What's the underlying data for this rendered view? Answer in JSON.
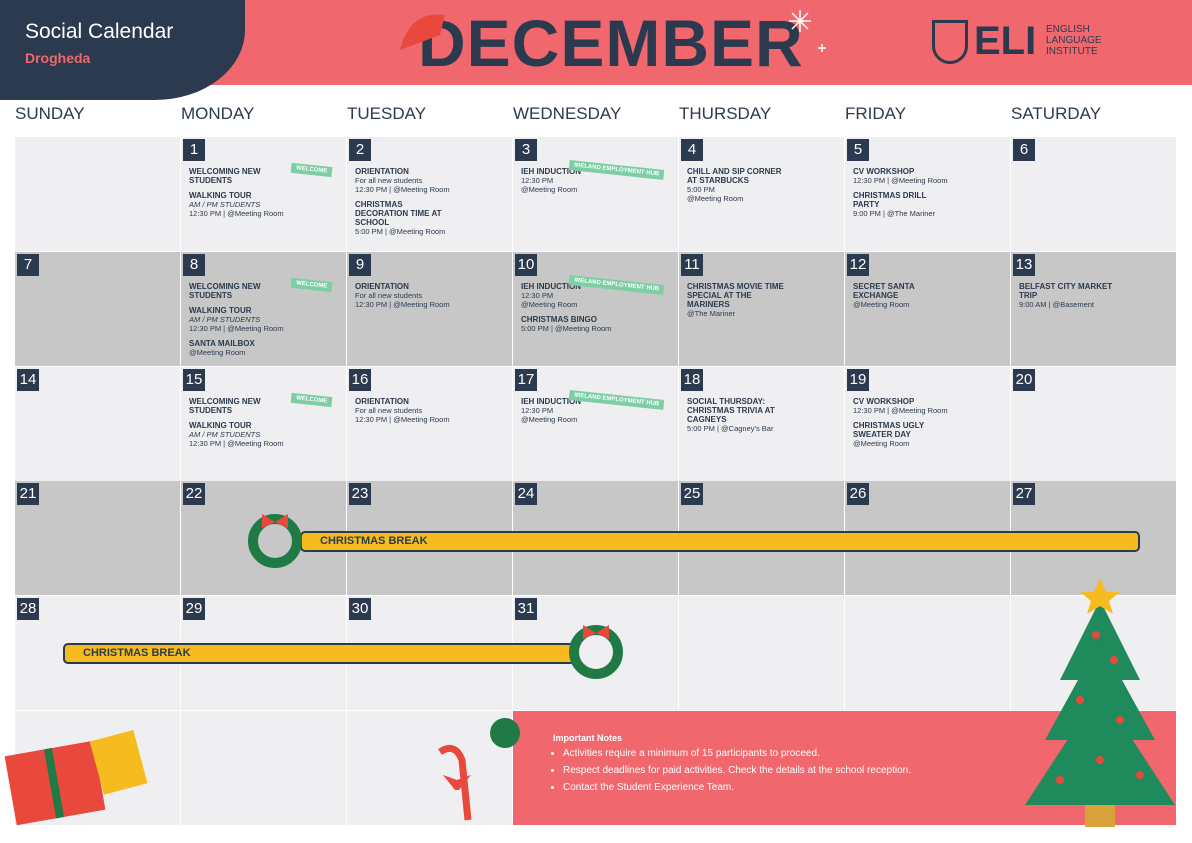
{
  "header": {
    "title": "Social Calendar",
    "location": "Drogheda",
    "month": "DECEMBER",
    "logo": "ELI",
    "logo_text": "ENGLISH LANGUAGE INSTITUTE"
  },
  "weekdays": [
    "SUNDAY",
    "MONDAY",
    "TUESDAY",
    "WEDNESDAY",
    "THURSDAY",
    "FRIDAY",
    "SATURDAY"
  ],
  "days": [
    {
      "day": "1",
      "events": [
        {
          "title": "WELCOMING NEW STUDENTS",
          "badge": "WELCOME"
        },
        {
          "title": "WALKING TOUR",
          "note": "AM / PM STUDENTS",
          "details": [
            "12:30 PM | @Meeting Room"
          ]
        }
      ]
    },
    {
      "day": "2",
      "events": [
        {
          "title": "ORIENTATION",
          "details": [
            "For all new students",
            "12:30 PM | @Meeting Room"
          ]
        },
        {
          "title": "CHRISTMAS DECORATION TIME AT SCHOOL",
          "details": [
            "5:00 PM | @Meeting Room"
          ]
        }
      ]
    },
    {
      "day": "3",
      "events": [
        {
          "title": "IEH INDUCTION",
          "badge": "IRELAND EMPLOYMENT HUB",
          "details": [
            "12:30 PM",
            "@Meeting Room"
          ]
        }
      ]
    },
    {
      "day": "4",
      "events": [
        {
          "title": "CHILL AND SIP CORNER AT STARBUCKS",
          "details": [
            "5:00 PM",
            "@Meeting Room"
          ]
        }
      ]
    },
    {
      "day": "5",
      "events": [
        {
          "title": "CV WORKSHOP",
          "details": [
            "12:30 PM | @Meeting Room"
          ]
        },
        {
          "title": "CHRISTMAS DRILL PARTY",
          "details": [
            "9:00 PM | @The Mariner"
          ]
        }
      ]
    },
    {
      "day": "6",
      "events": []
    },
    {
      "day": "7",
      "events": []
    },
    {
      "day": "8",
      "events": [
        {
          "title": "WELCOMING NEW STUDENTS",
          "badge": "WELCOME"
        },
        {
          "title": "WALKING TOUR",
          "note": "AM / PM STUDENTS",
          "details": [
            "12:30 PM | @Meeting Room"
          ]
        },
        {
          "title": "SANTA MAILBOX",
          "details": [
            "@Meeting Room"
          ]
        }
      ]
    },
    {
      "day": "9",
      "events": [
        {
          "title": "ORIENTATION",
          "details": [
            "For all new students",
            "12:30 PM | @Meeting Room"
          ]
        }
      ]
    },
    {
      "day": "10",
      "events": [
        {
          "title": "IEH INDUCTION",
          "badge": "IRELAND EMPLOYMENT HUB",
          "details": [
            "12:30 PM",
            "@Meeting Room"
          ]
        },
        {
          "title": "CHRISTMAS BINGO",
          "details": [
            "5:00 PM | @Meeting Room"
          ]
        }
      ]
    },
    {
      "day": "11",
      "events": [
        {
          "title": "CHRISTMAS MOVIE TIME SPECIAL AT THE MARINERS",
          "details": [
            "@The Mariner"
          ]
        }
      ]
    },
    {
      "day": "12",
      "events": [
        {
          "title": "SECRET SANTA EXCHANGE",
          "details": [
            "@Meeting Room"
          ]
        }
      ]
    },
    {
      "day": "13",
      "events": [
        {
          "title": "BELFAST CITY MARKET TRIP",
          "details": [
            "9:00 AM | @Basement"
          ]
        }
      ]
    },
    {
      "day": "14",
      "events": []
    },
    {
      "day": "15",
      "events": [
        {
          "title": "WELCOMING NEW STUDENTS",
          "badge": "WELCOME"
        },
        {
          "title": "WALKING TOUR",
          "note": "AM / PM STUDENTS",
          "details": [
            "12:30 PM | @Meeting Room"
          ]
        }
      ]
    },
    {
      "day": "16",
      "events": [
        {
          "title": "ORIENTATION",
          "details": [
            "For all new students",
            "12:30 PM | @Meeting Room"
          ]
        }
      ]
    },
    {
      "day": "17",
      "events": [
        {
          "title": "IEH INDUCTION",
          "badge": "IRELAND EMPLOYMENT HUB",
          "details": [
            "12:30 PM",
            "@Meeting Room"
          ]
        }
      ]
    },
    {
      "day": "18",
      "events": [
        {
          "title": "SOCIAL THURSDAY: CHRISTMAS TRIVIA AT CAGNEYS",
          "details": [
            "5:00 PM | @Cagney's Bar"
          ]
        }
      ]
    },
    {
      "day": "19",
      "events": [
        {
          "title": "CV WORKSHOP",
          "details": [
            "12:30 PM | @Meeting Room"
          ]
        },
        {
          "title": "CHRISTMAS UGLY SWEATER DAY",
          "details": [
            "@Meeting Room"
          ]
        }
      ]
    },
    {
      "day": "20",
      "events": []
    },
    {
      "day": "21",
      "events": []
    },
    {
      "day": "22",
      "events": []
    },
    {
      "day": "23",
      "events": []
    },
    {
      "day": "24",
      "events": []
    },
    {
      "day": "25",
      "events": []
    },
    {
      "day": "26",
      "events": []
    },
    {
      "day": "27",
      "events": []
    },
    {
      "day": "28",
      "events": []
    },
    {
      "day": "29",
      "events": []
    },
    {
      "day": "30",
      "events": []
    },
    {
      "day": "31",
      "events": []
    }
  ],
  "breaks": [
    {
      "label": "CHRISTMAS BREAK"
    },
    {
      "label": "CHRISTMAS BREAK"
    }
  ],
  "notes": {
    "title": "Important Notes",
    "items": [
      "Activities require a minimum of 15 participants to proceed.",
      "Respect deadlines for paid activities. Check the details at the school reception.",
      "Contact the Student Experience Team."
    ]
  }
}
